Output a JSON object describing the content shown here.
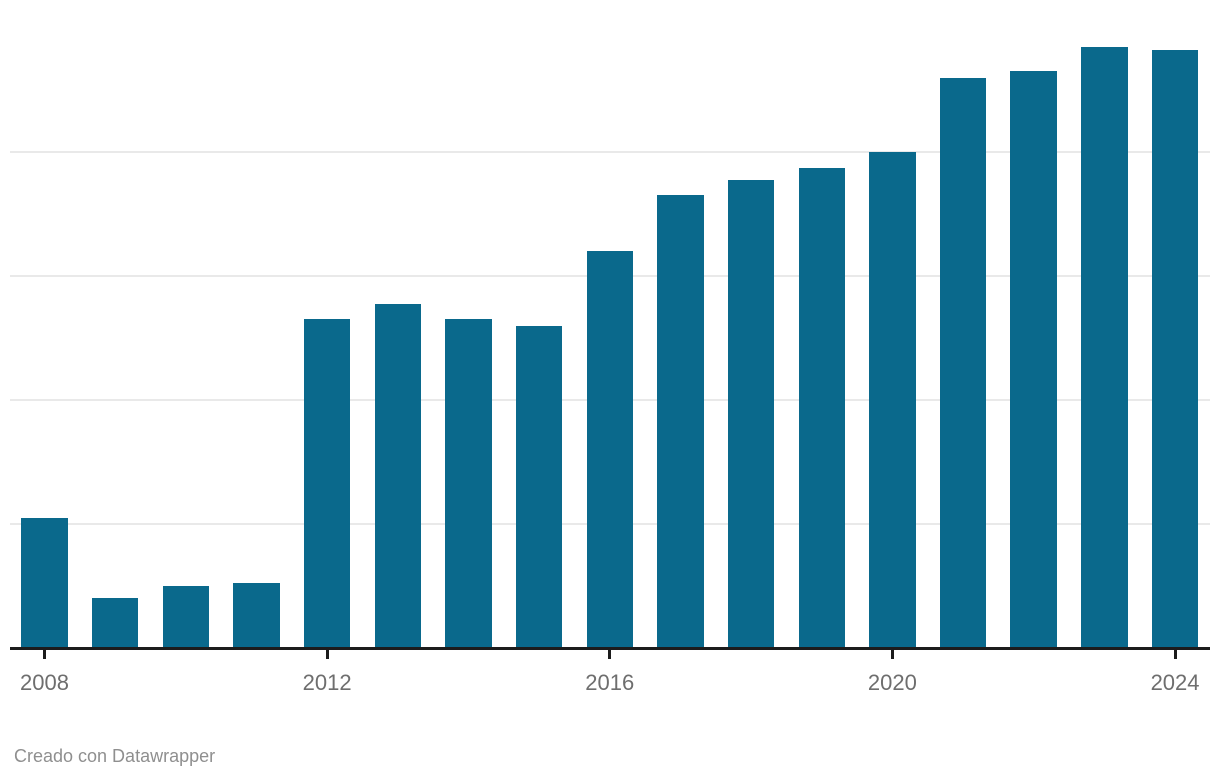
{
  "chart_data": {
    "type": "bar",
    "title": "",
    "xlabel": "",
    "ylabel": "",
    "categories": [
      "2008",
      "2009",
      "2010",
      "2011",
      "2012",
      "2013",
      "2014",
      "2015",
      "2016",
      "2017",
      "2018",
      "2019",
      "2020",
      "2021",
      "2022",
      "2023",
      "2024"
    ],
    "values": [
      21,
      8,
      10,
      10.5,
      53,
      55.5,
      53,
      52,
      64,
      73,
      75.5,
      77.5,
      80,
      92,
      93,
      97,
      96.5
    ],
    "x_tick_labels": [
      "2008",
      "2012",
      "2016",
      "2020",
      "2024"
    ],
    "ylim": [
      0,
      105
    ],
    "gridlines": {
      "values": [
        20,
        40,
        60,
        80
      ],
      "labels_visible": false
    },
    "legend_position": "none",
    "bar_color": "#0a698c"
  },
  "footer": {
    "credit_label": "Creado con Datawrapper"
  },
  "colors": {
    "bar": "#0a698c",
    "background": "#ffffff",
    "gridline": "#e9e9e9",
    "axis_line": "#1c1c1c",
    "tick_label_text": "#6e6e6e",
    "footer_text": "#8f8f8f"
  }
}
